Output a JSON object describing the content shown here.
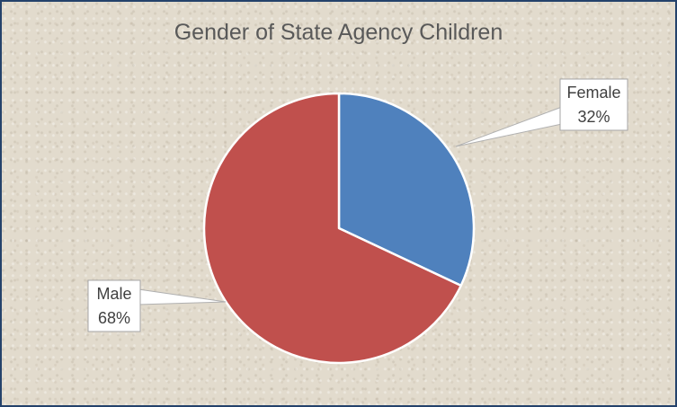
{
  "chart_data": {
    "type": "pie",
    "title": "Gender of State Agency Children",
    "slices": [
      {
        "label": "Female",
        "value": 32,
        "value_label": "32%",
        "color": "#4f81bd"
      },
      {
        "label": "Male",
        "value": 68,
        "value_label": "68%",
        "color": "#c0504d"
      }
    ],
    "legend": "none",
    "data_labels": "callouts"
  },
  "colors": {
    "frame_border": "#24426b",
    "background": "#e2dbcd",
    "slice_outline": "#ffffff"
  }
}
